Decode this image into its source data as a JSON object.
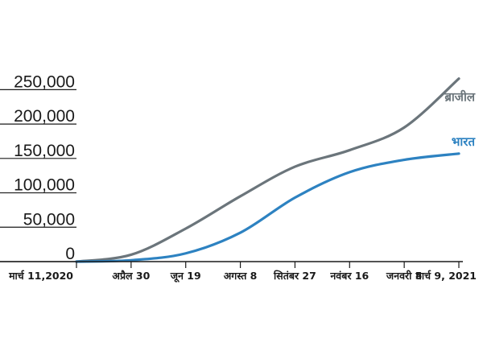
{
  "chart_data": {
    "type": "line",
    "title": "",
    "xlabel": "",
    "ylabel": "",
    "ylim": [
      0,
      275000
    ],
    "yticks": [
      0,
      50000,
      100000,
      150000,
      200000,
      250000
    ],
    "ytick_labels": [
      "0",
      "50,000",
      "100,000",
      "150,000",
      "200,000",
      "250,000"
    ],
    "x": [
      "मार्च 11,2020",
      "अप्रैल 30",
      "जून 19",
      "अगस्त 8",
      "सितंबर 27",
      "नवंबर 16",
      "जनवरी 5",
      "मार्च 9, 2021"
    ],
    "grid": false,
    "colors": {
      "brazil": "#6b757b",
      "india": "#2d82c1",
      "axis": "#1a1a1a"
    },
    "series": [
      {
        "name": "ब्राजील",
        "values": [
          0,
          10000,
          48000,
          95000,
          138000,
          162000,
          195000,
          266000
        ]
      },
      {
        "name": "भारत",
        "values": [
          0,
          2000,
          12000,
          42000,
          93000,
          130000,
          148000,
          157000
        ]
      }
    ]
  }
}
